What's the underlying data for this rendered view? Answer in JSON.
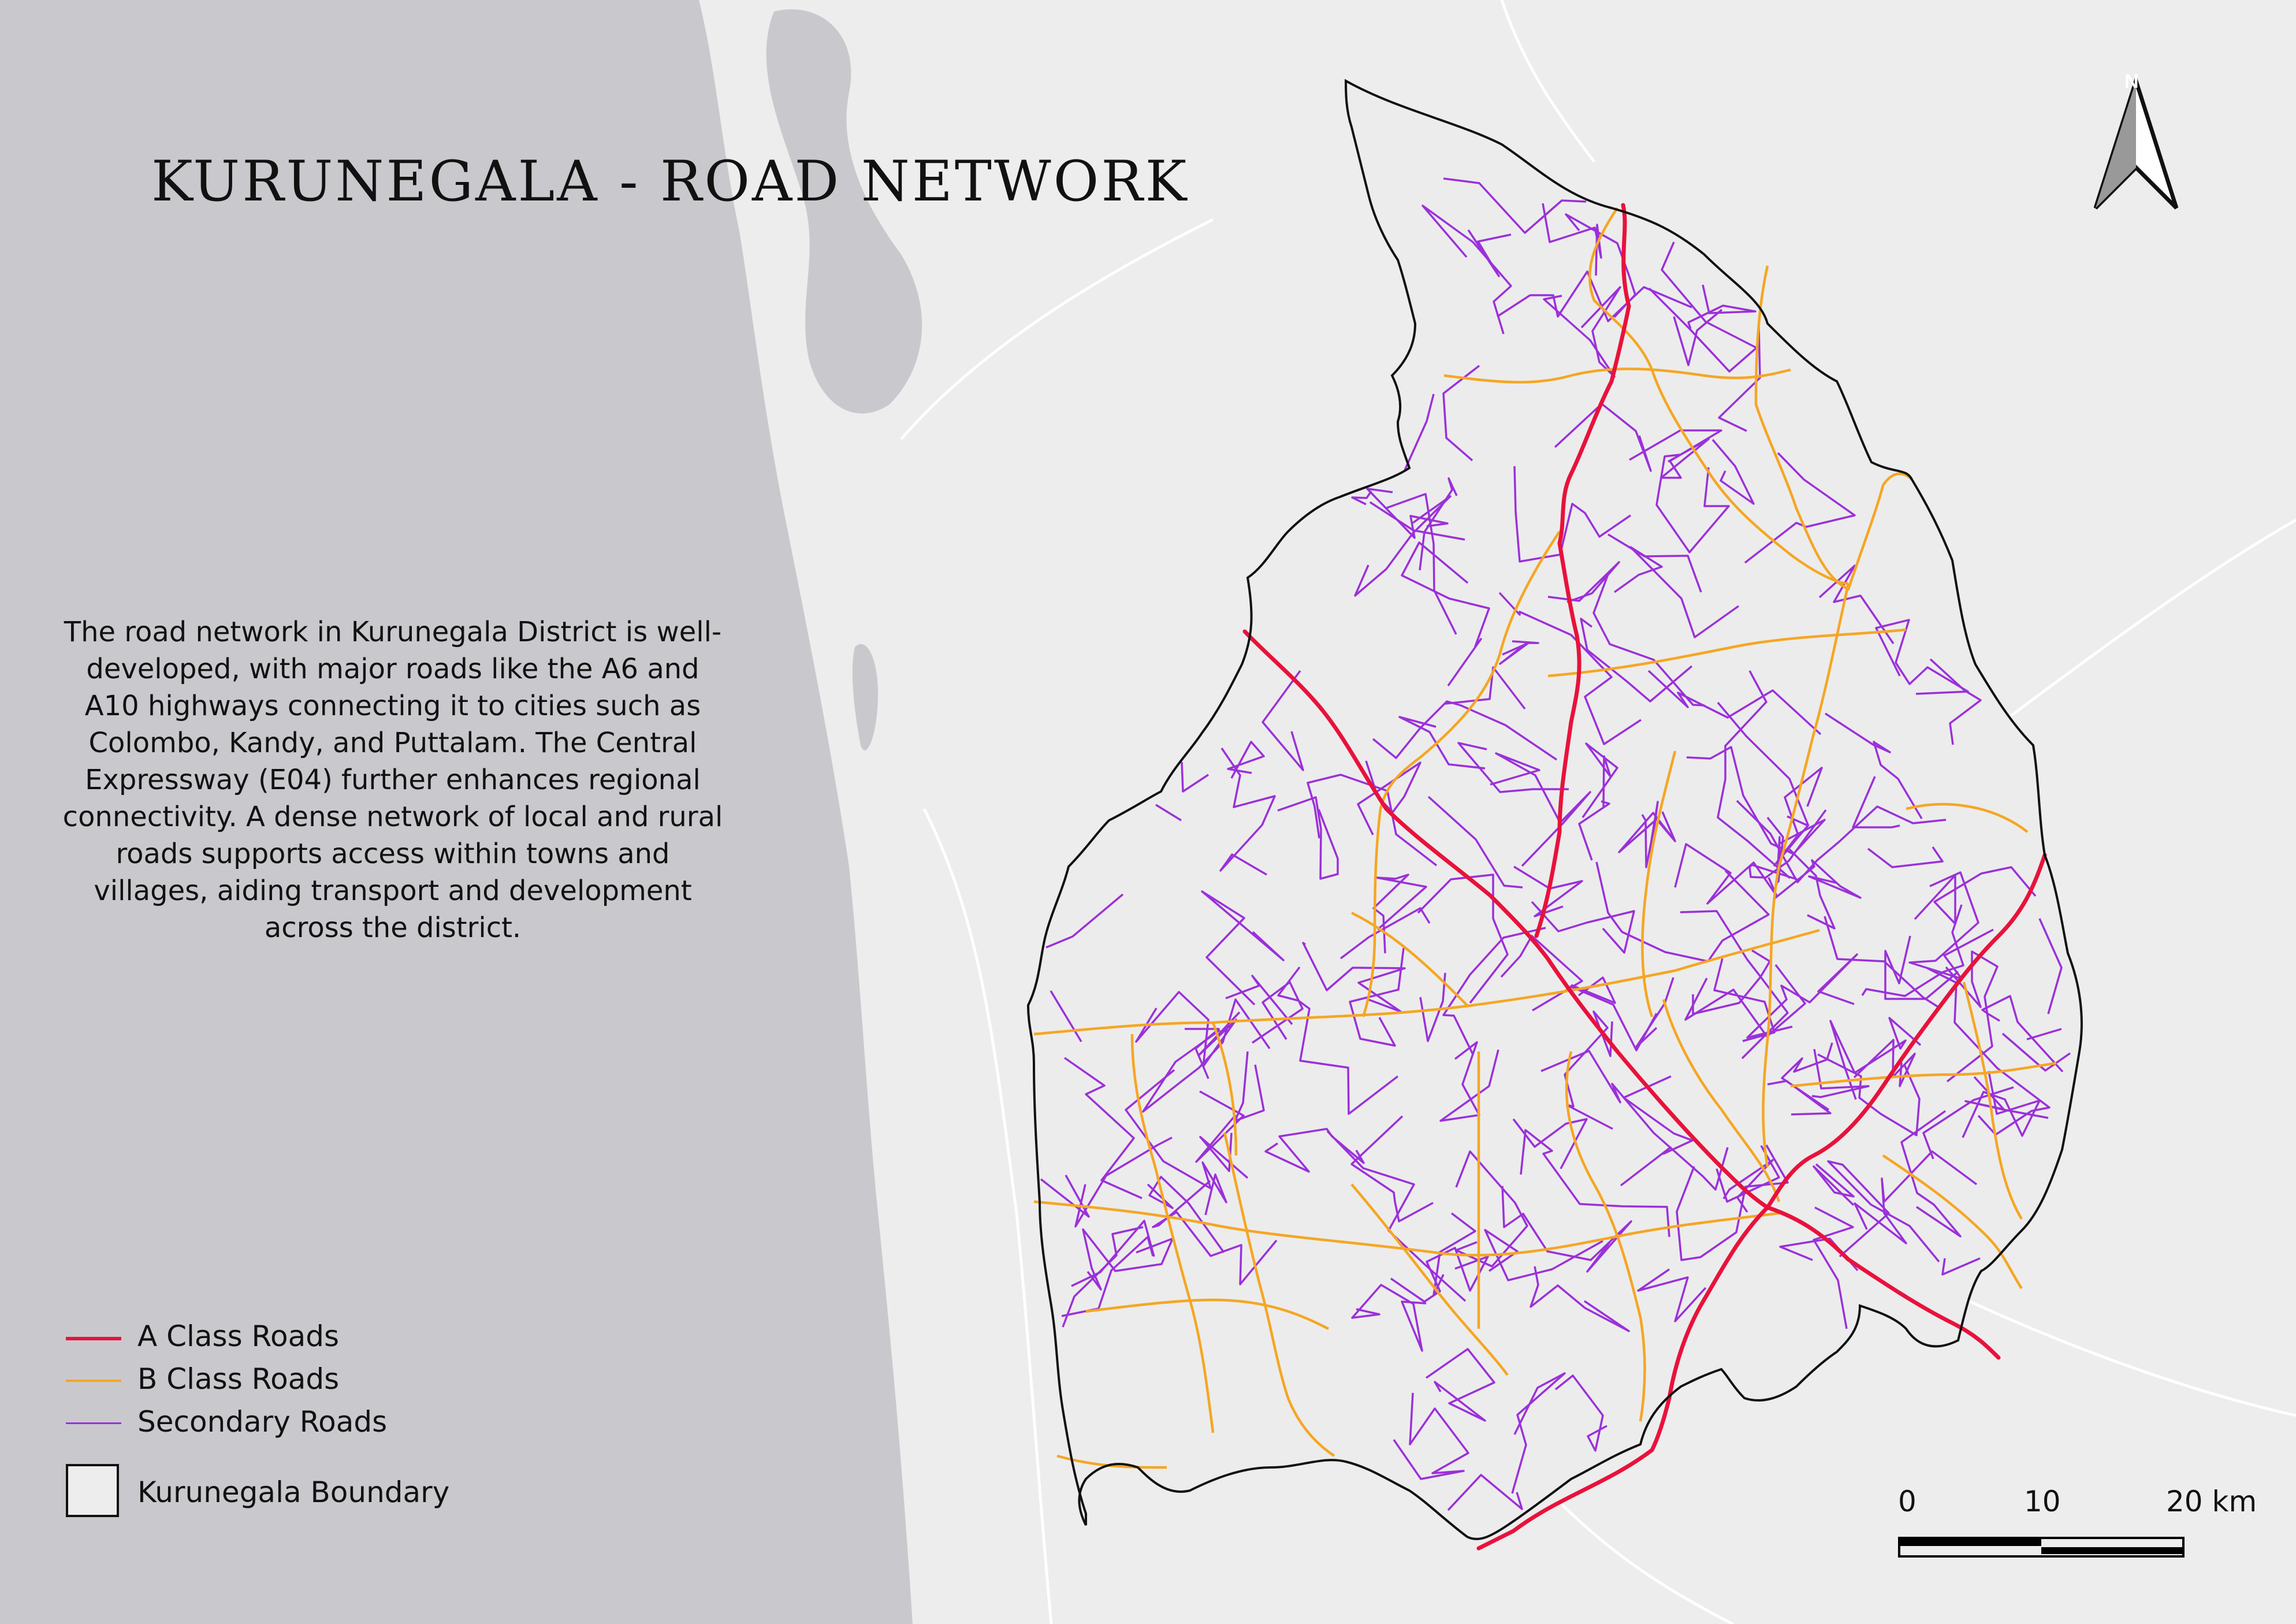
{
  "title": "KURUNEGALA - ROAD NETWORK",
  "description": "The road network in Kurunegala District is well-developed, with major roads like the A6 and A10 highways connecting it to cities such as Colombo, Kandy, and Puttalam. The Central Expressway (E04) further enhances regional connectivity. A dense network of local and rural roads supports access within towns and villages, aiding transport and development across the district.",
  "legend": {
    "a_class": "A Class Roads",
    "b_class": "B Class Roads",
    "secondary": "Secondary Roads",
    "boundary": "Kurunegala Boundary"
  },
  "scale_bar": {
    "label_0": "0",
    "label_10": "10",
    "label_20": "20 km"
  },
  "north_arrow": {
    "icon": "north-arrow-icon",
    "label": "N"
  },
  "colors": {
    "sea": "#c9c9cd",
    "land": "#ededed",
    "a_class": "#e8123c",
    "b_class": "#f5a623",
    "secondary": "#9b30d9",
    "boundary": "#111111"
  }
}
